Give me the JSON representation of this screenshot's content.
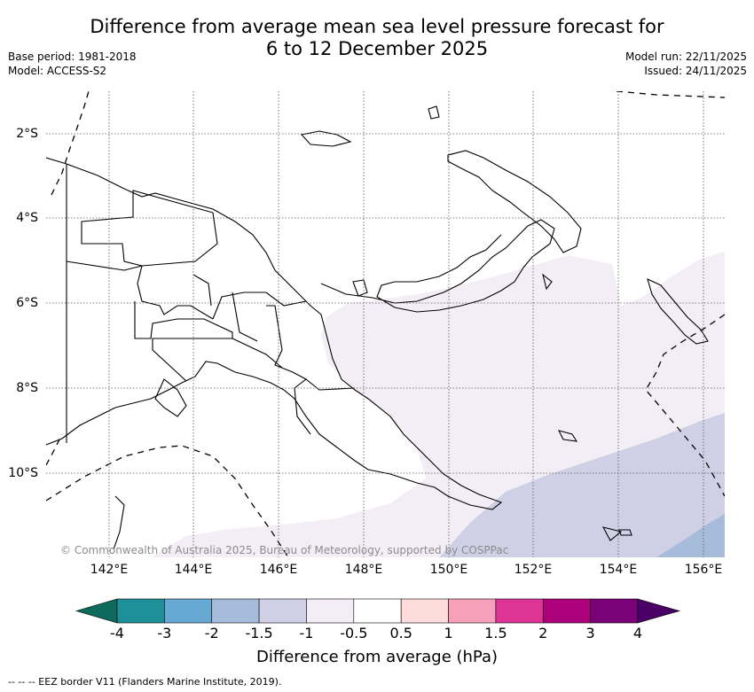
{
  "header": {
    "title_line1": "Difference from average mean sea level pressure forecast for",
    "title_line2": "6 to 12 December 2025",
    "base_period": "Base period: 1981-2018",
    "model": "Model: ACCESS-S2",
    "model_run": "Model run: 22/11/2025",
    "issued": "Issued: 24/11/2025"
  },
  "map": {
    "lat_labels": [
      "2°S",
      "4°S",
      "6°S",
      "8°S",
      "10°S"
    ],
    "lon_labels": [
      "142°E",
      "144°E",
      "146°E",
      "148°E",
      "150°E",
      "152°E",
      "154°E",
      "156°E"
    ],
    "copyright": "© Commonwealth of Australia 2025, Bureau of Meteorology, supported by COSPPac",
    "colors": {
      "band_neg1_neg05": "#f3eef5",
      "band_neg15_neg1": "#cfd0e6",
      "band_neg2_neg15": "#a7bcdb",
      "land_outline": "#000000",
      "grid": "#555555"
    }
  },
  "colorbar": {
    "title": "Difference from average (hPa)",
    "tick_labels": [
      "-4",
      "-3",
      "-2",
      "-1.5",
      "-1",
      "-0.5",
      "0.5",
      "1",
      "1.5",
      "2",
      "3",
      "4"
    ],
    "colors": [
      "#0e6a5d",
      "#1e9099",
      "#66a9d3",
      "#a7bcdb",
      "#cfd0e6",
      "#f3eef5",
      "#ffffff",
      "#fedcdc",
      "#f6a0ba",
      "#dd3496",
      "#ad017c",
      "#7a0178",
      "#4b0068"
    ]
  },
  "footnote": "-- -- -- EEZ border V11 (Flanders Marine Institute, 2019)."
}
